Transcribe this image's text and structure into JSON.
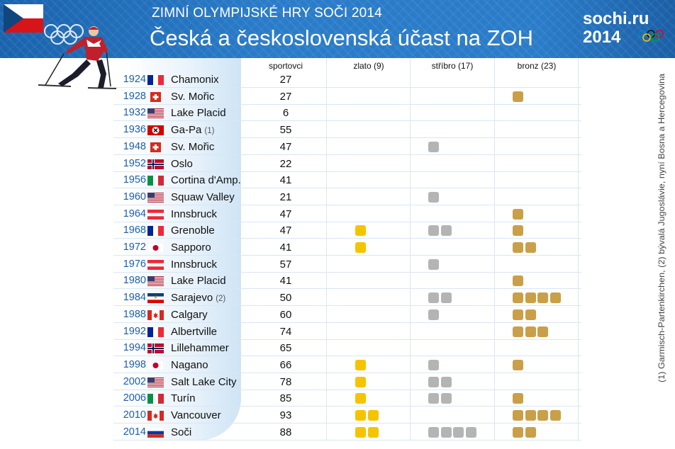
{
  "header": {
    "subtitle": "ZIMNÍ OLYMPIJSKÉ HRY SOČI 2014",
    "title": "Česká a československá účast na ZOH",
    "logo_top": "sochi.ru",
    "logo_bottom": "2014"
  },
  "footnote": "(1) Garmisch-Partenkirchen, (2) bývalá Jugoslávie, nyní Bosna a Hercegovina",
  "colors": {
    "gold": "#f5c400",
    "silver": "#b4b4b4",
    "bronze": "#c9a049",
    "year": "#1d5fa8",
    "header": "#2a7cc9"
  },
  "chart_data": {
    "type": "table",
    "columns": [
      "sportovci",
      "zlato (9)",
      "stříbro (17)",
      "bronz (23)"
    ],
    "rows": [
      {
        "year": "1924",
        "flag": "france",
        "city": "Chamonix",
        "note": "",
        "athletes": 27,
        "gold": 0,
        "silver": 0,
        "bronze": 0
      },
      {
        "year": "1928",
        "flag": "switzerland",
        "city": "Sv. Mořic",
        "note": "",
        "athletes": 27,
        "gold": 0,
        "silver": 0,
        "bronze": 1
      },
      {
        "year": "1932",
        "flag": "usa",
        "city": "Lake Placid",
        "note": "",
        "athletes": 6,
        "gold": 0,
        "silver": 0,
        "bronze": 0
      },
      {
        "year": "1936",
        "flag": "germany-1936",
        "city": "Ga-Pa",
        "note": "(1)",
        "athletes": 55,
        "gold": 0,
        "silver": 0,
        "bronze": 0
      },
      {
        "year": "1948",
        "flag": "switzerland",
        "city": "Sv. Mořic",
        "note": "",
        "athletes": 47,
        "gold": 0,
        "silver": 1,
        "bronze": 0
      },
      {
        "year": "1952",
        "flag": "norway",
        "city": "Oslo",
        "note": "",
        "athletes": 22,
        "gold": 0,
        "silver": 0,
        "bronze": 0
      },
      {
        "year": "1956",
        "flag": "italy",
        "city": "Cortina d'Amp.",
        "note": "",
        "athletes": 41,
        "gold": 0,
        "silver": 0,
        "bronze": 0
      },
      {
        "year": "1960",
        "flag": "usa",
        "city": "Squaw Valley",
        "note": "",
        "athletes": 21,
        "gold": 0,
        "silver": 1,
        "bronze": 0
      },
      {
        "year": "1964",
        "flag": "austria",
        "city": "Innsbruck",
        "note": "",
        "athletes": 47,
        "gold": 0,
        "silver": 0,
        "bronze": 1
      },
      {
        "year": "1968",
        "flag": "france",
        "city": "Grenoble",
        "note": "",
        "athletes": 47,
        "gold": 1,
        "silver": 2,
        "bronze": 1
      },
      {
        "year": "1972",
        "flag": "japan",
        "city": "Sapporo",
        "note": "",
        "athletes": 41,
        "gold": 1,
        "silver": 0,
        "bronze": 2
      },
      {
        "year": "1976",
        "flag": "austria",
        "city": "Innsbruck",
        "note": "",
        "athletes": 57,
        "gold": 0,
        "silver": 1,
        "bronze": 0
      },
      {
        "year": "1980",
        "flag": "usa",
        "city": "Lake Placid",
        "note": "",
        "athletes": 41,
        "gold": 0,
        "silver": 0,
        "bronze": 1
      },
      {
        "year": "1984",
        "flag": "yugoslavia",
        "city": "Sarajevo",
        "note": "(2)",
        "athletes": 50,
        "gold": 0,
        "silver": 2,
        "bronze": 4
      },
      {
        "year": "1988",
        "flag": "canada",
        "city": "Calgary",
        "note": "",
        "athletes": 60,
        "gold": 0,
        "silver": 1,
        "bronze": 2
      },
      {
        "year": "1992",
        "flag": "france",
        "city": "Albertville",
        "note": "",
        "athletes": 74,
        "gold": 0,
        "silver": 0,
        "bronze": 3
      },
      {
        "year": "1994",
        "flag": "norway",
        "city": "Lillehammer",
        "note": "",
        "athletes": 65,
        "gold": 0,
        "silver": 0,
        "bronze": 0
      },
      {
        "year": "1998",
        "flag": "japan",
        "city": "Nagano",
        "note": "",
        "athletes": 66,
        "gold": 1,
        "silver": 1,
        "bronze": 1
      },
      {
        "year": "2002",
        "flag": "usa",
        "city": "Salt Lake City",
        "note": "",
        "athletes": 78,
        "gold": 1,
        "silver": 2,
        "bronze": 0
      },
      {
        "year": "2006",
        "flag": "italy",
        "city": "Turín",
        "note": "",
        "athletes": 85,
        "gold": 1,
        "silver": 2,
        "bronze": 1
      },
      {
        "year": "2010",
        "flag": "canada",
        "city": "Vancouver",
        "note": "",
        "athletes": 93,
        "gold": 2,
        "silver": 0,
        "bronze": 4
      },
      {
        "year": "2014",
        "flag": "russia",
        "city": "Soči",
        "note": "",
        "athletes": 88,
        "gold": 2,
        "silver": 4,
        "bronze": 2
      }
    ]
  }
}
